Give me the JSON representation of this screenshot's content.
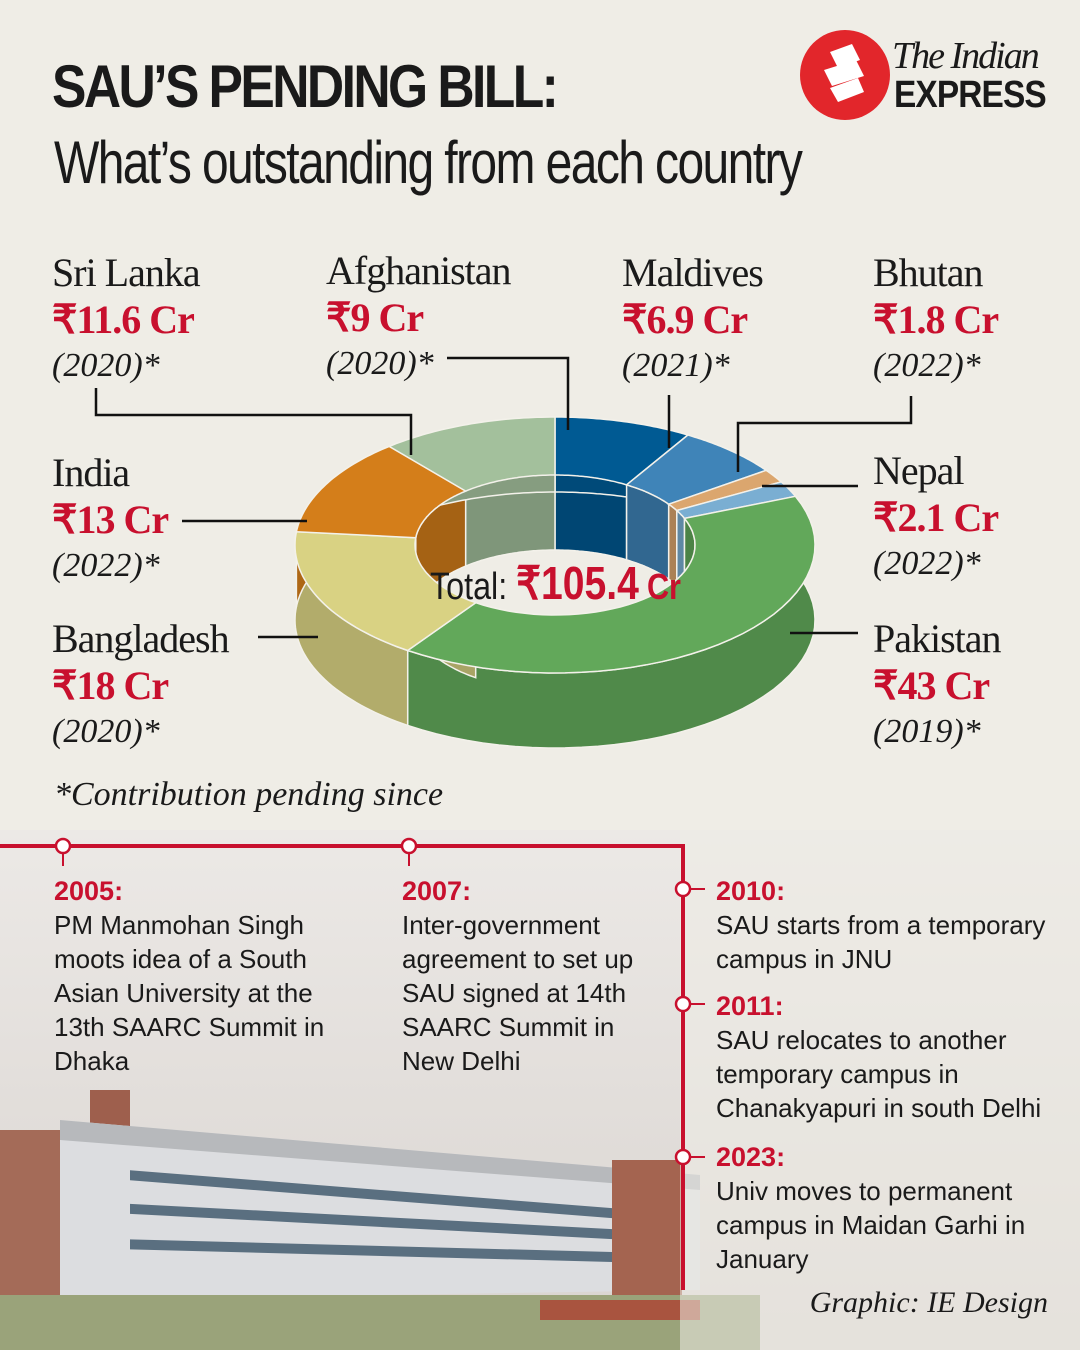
{
  "title": {
    "line1": "SAU’S PENDING BILL:",
    "line2": "What’s outstanding from each country"
  },
  "logo": {
    "line1": "The Indian",
    "line2": "EXPRESS"
  },
  "chart_data": {
    "type": "pie",
    "style": "3d-donut",
    "title": "SAU’s pending bill: What’s outstanding from each country",
    "unit": "₹ Cr",
    "total_label": "Total:",
    "total_value": "₹105.4",
    "total_unit": "Cr",
    "slices": [
      {
        "name": "Afghanistan",
        "value": 9,
        "label": "₹9 Cr",
        "since": "(2020)*",
        "color": "#005a93"
      },
      {
        "name": "Maldives",
        "value": 6.9,
        "label": "₹6.9 Cr",
        "since": "(2021)*",
        "color": "#3f84b8"
      },
      {
        "name": "Bhutan",
        "value": 1.8,
        "label": "₹1.8 Cr",
        "since": "(2022)*",
        "color": "#dba66e"
      },
      {
        "name": "Nepal",
        "value": 2.1,
        "label": "₹2.1 Cr",
        "since": "(2022)*",
        "color": "#7aaed2"
      },
      {
        "name": "Pakistan",
        "value": 43,
        "label": "₹43 Cr",
        "since": "(2019)*",
        "color": "#62a85a"
      },
      {
        "name": "Bangladesh",
        "value": 18,
        "label": "₹18 Cr",
        "since": "(2020)*",
        "color": "#d9d283"
      },
      {
        "name": "India",
        "value": 13,
        "label": "₹13 Cr",
        "since": "(2022)*",
        "color": "#d47e1a"
      },
      {
        "name": "Sri Lanka",
        "value": 11.6,
        "label": "₹11.6 Cr",
        "since": "(2020)*",
        "color": "#a3c09c"
      }
    ],
    "footnote": "*Contribution pending since"
  },
  "timeline": [
    {
      "year": "2005:",
      "text": "PM Manmohan Singh moots idea of a South Asian University at the 13th SAARC Summit in Dhaka"
    },
    {
      "year": "2007:",
      "text": "Inter-government agreement to set up SAU signed at 14th SAARC Summit in New Delhi"
    },
    {
      "year": "2010:",
      "text": "SAU starts from a temporary campus in JNU"
    },
    {
      "year": "2011:",
      "text": "SAU relocates to another temporary campus in Chanakyapuri in south Delhi"
    },
    {
      "year": "2023:",
      "text": "Univ moves to permanent campus in Maidan Garhi in January"
    }
  ],
  "credit": "Graphic: IE Design"
}
